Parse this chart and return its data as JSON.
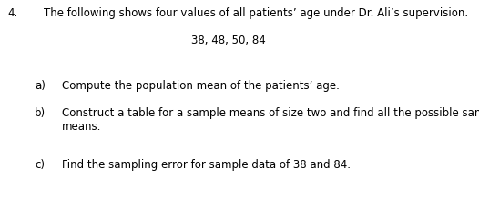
{
  "background_color": "#ffffff",
  "number": "4.",
  "intro_text": "The following shows four values of all patients’ age under Dr. Ali’s supervision.",
  "data_values": "38, 48, 50, 84",
  "part_a_label": "a)",
  "part_a_text": "Compute the population mean of the patients’ age.",
  "part_b_label": "b)",
  "part_b_text_line1": "Construct a table for a sample means of size two and find all the possible sample",
  "part_b_text_line2": "means.",
  "part_c_label": "c)",
  "part_c_text": "Find the sampling error for sample data of 38 and 84.",
  "font_size": 8.5,
  "text_color": "#000000",
  "font_family": "DejaVu Sans"
}
